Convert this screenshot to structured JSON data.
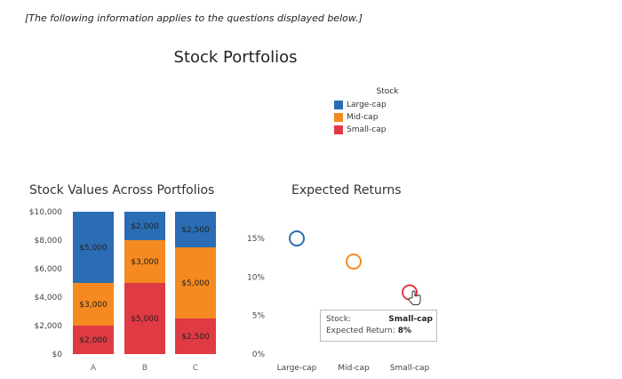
{
  "header": {
    "intro": "[The following information applies to the questions displayed below.]",
    "title": "Stock Portfolios"
  },
  "legend": {
    "title": "Stock",
    "items": [
      {
        "label": "Large-cap",
        "color": "#2a6db4"
      },
      {
        "label": "Mid-cap",
        "color": "#f48a20"
      },
      {
        "label": "Small-cap",
        "color": "#e03a45"
      }
    ]
  },
  "chart_data": [
    {
      "type": "bar",
      "stacked": true,
      "title": "Stock Values Across Portfolios",
      "categories": [
        "A",
        "B",
        "C"
      ],
      "series": [
        {
          "name": "Small-cap",
          "values": [
            2000,
            5000,
            2500
          ],
          "labels": [
            "$2,000",
            "$5,000",
            "$2,500"
          ],
          "color": "#e03a45"
        },
        {
          "name": "Mid-cap",
          "values": [
            3000,
            3000,
            5000
          ],
          "labels": [
            "$3,000",
            "$3,000",
            "$5,000"
          ],
          "color": "#f48a20"
        },
        {
          "name": "Large-cap",
          "values": [
            5000,
            2000,
            2500
          ],
          "labels": [
            "$5,000",
            "$2,000",
            "$2,500"
          ],
          "color": "#2a6db4"
        }
      ],
      "ylim": [
        0,
        10000
      ],
      "yticks": [
        0,
        2000,
        4000,
        6000,
        8000,
        10000
      ],
      "ytick_labels": [
        "$0",
        "$2,000",
        "$4,000",
        "$6,000",
        "$8,000",
        "$10,000"
      ]
    },
    {
      "type": "scatter",
      "title": "Expected Returns",
      "categories": [
        "Large-cap",
        "Mid-cap",
        "Small-cap"
      ],
      "values": [
        15,
        12,
        8
      ],
      "ylim": [
        0,
        18
      ],
      "yticks": [
        0,
        5,
        10,
        15
      ],
      "ytick_labels": [
        "0%",
        "5%",
        "10%",
        "15%"
      ],
      "tooltip": {
        "stock_label": "Stock:",
        "stock_value": "Small-cap",
        "return_label": "Expected Return:",
        "return_value": "8%"
      }
    }
  ]
}
